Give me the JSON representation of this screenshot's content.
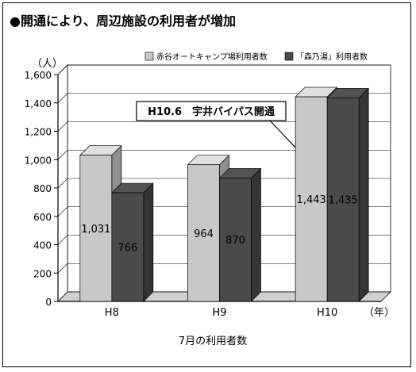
{
  "chart_data": {
    "type": "bar",
    "title": "●開通により、周辺施設の利用者が増加",
    "ylabel": "（人）",
    "xunit": "（年）",
    "xlabel": "7月の利用者数",
    "categories": [
      "H8",
      "H9",
      "H10"
    ],
    "yticks": [
      "0",
      "200",
      "400",
      "600",
      "800",
      "1,000",
      "1,200",
      "1,400",
      "1,600"
    ],
    "ylim": [
      0,
      1600
    ],
    "grid": true,
    "legend_position": "top-right",
    "series": [
      {
        "name": "赤谷オートキャンプ場利用者数",
        "values": [
          1031,
          964,
          1443
        ],
        "labels": [
          "1,031",
          "964",
          "1,443"
        ],
        "color": "#c8c8c8"
      },
      {
        "name": "「森乃湯」利用者数",
        "values": [
          766,
          870,
          1435
        ],
        "labels": [
          "766",
          "870",
          "1,435"
        ],
        "color": "#4a4a4a"
      }
    ],
    "annotation": {
      "text": "H10.6　宇井バイパス開通",
      "category": "H10"
    }
  }
}
